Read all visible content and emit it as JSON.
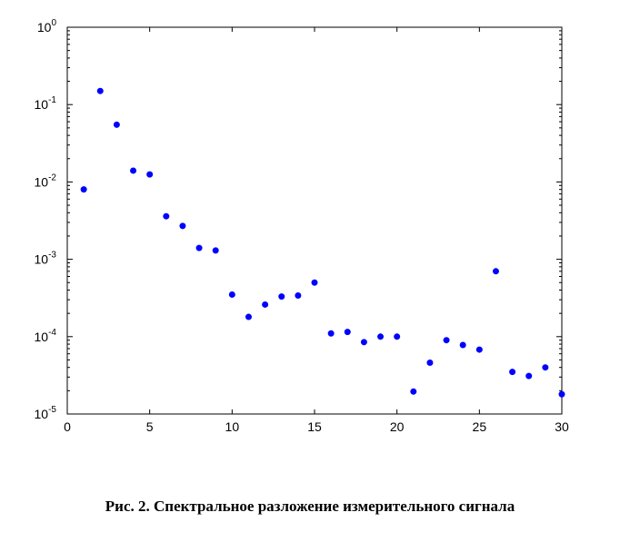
{
  "caption": "Рис. 2. Спектральное разложение измерительного сигнала",
  "chart_data": {
    "type": "scatter",
    "title": "",
    "xlabel": "",
    "ylabel": "",
    "xlim": [
      0,
      30
    ],
    "ylim": [
      1e-05,
      1
    ],
    "yscale": "log",
    "grid": false,
    "legend": "none",
    "x_ticks": [
      0,
      5,
      10,
      15,
      20,
      25,
      30
    ],
    "y_ticks": [
      {
        "base": "10",
        "exp": "-5",
        "value": 1e-05
      },
      {
        "base": "10",
        "exp": "-4",
        "value": 0.0001
      },
      {
        "base": "10",
        "exp": "-3",
        "value": 0.001
      },
      {
        "base": "10",
        "exp": "-2",
        "value": 0.01
      },
      {
        "base": "10",
        "exp": "-1",
        "value": 0.1
      },
      {
        "base": "10",
        "exp": "0",
        "value": 1
      }
    ],
    "marker_color": "#0000ff",
    "series": [
      {
        "x": [
          1,
          2,
          3,
          4,
          5,
          6,
          7,
          8,
          9,
          10,
          11,
          12,
          13,
          14,
          15,
          16,
          17,
          18,
          19,
          20,
          21,
          22,
          23,
          24,
          25,
          26,
          27,
          28,
          29,
          30
        ],
        "y": [
          0.008,
          0.15,
          0.055,
          0.014,
          0.0125,
          0.0036,
          0.0027,
          0.0014,
          0.0013,
          0.00035,
          0.00018,
          0.00026,
          0.00033,
          0.00034,
          0.0005,
          0.00011,
          0.000115,
          8.5e-05,
          0.0001,
          0.0001,
          1.95e-05,
          4.6e-05,
          9e-05,
          7.8e-05,
          6.8e-05,
          0.0007,
          3.5e-05,
          3.1e-05,
          4e-05,
          1.8e-05
        ]
      }
    ]
  }
}
